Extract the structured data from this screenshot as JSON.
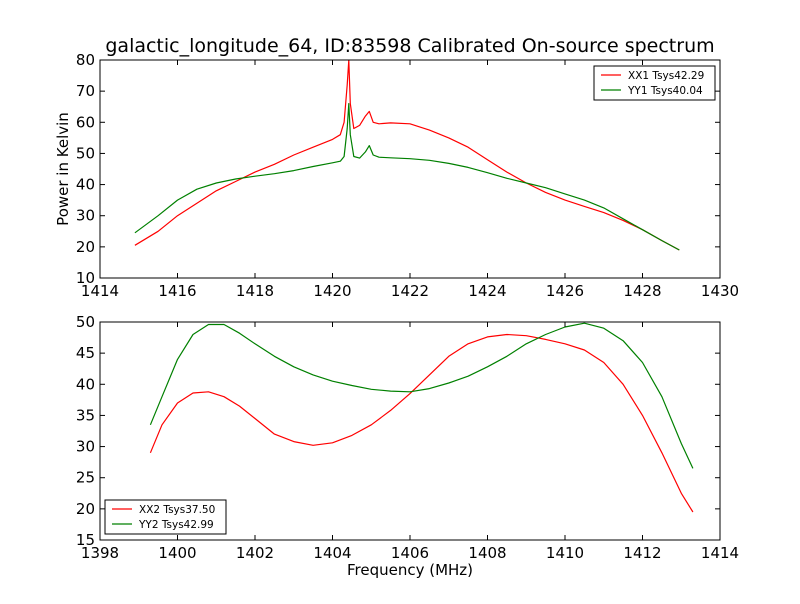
{
  "figure_title": "galactic_longitude_64, ID:83598 Calibrated On-source spectrum",
  "chart_data": [
    {
      "type": "line",
      "title": "galactic_longitude_64, ID:83598 Calibrated On-source spectrum",
      "xlabel": "",
      "ylabel": "Power in Kelvin",
      "xlim": [
        1414,
        1430
      ],
      "ylim": [
        10,
        80
      ],
      "xticks": [
        "1414",
        "1416",
        "1418",
        "1420",
        "1422",
        "1424",
        "1426",
        "1428",
        "1430"
      ],
      "yticks": [
        "10",
        "20",
        "30",
        "40",
        "50",
        "60",
        "70",
        "80"
      ],
      "legend_position": "top-right",
      "grid": false,
      "series": [
        {
          "name": "XX1 Tsys42.29",
          "color": "#ff0000",
          "x": [
            1414.9,
            1415.5,
            1416,
            1416.5,
            1417,
            1417.5,
            1418,
            1418.5,
            1419,
            1419.5,
            1420,
            1420.2,
            1420.3,
            1420.38,
            1420.42,
            1420.46,
            1420.55,
            1420.7,
            1420.85,
            1420.95,
            1421.05,
            1421.2,
            1421.5,
            1422,
            1422.5,
            1423,
            1423.5,
            1424,
            1424.5,
            1425,
            1425.5,
            1426,
            1426.5,
            1427,
            1427.5,
            1428,
            1428.5,
            1428.95
          ],
          "y": [
            20.5,
            25,
            30,
            34,
            38,
            41,
            44,
            46.5,
            49.5,
            52,
            54.5,
            56,
            60,
            72,
            80,
            66,
            58,
            59,
            62,
            63.5,
            60,
            59.5,
            59.8,
            59.5,
            57.5,
            55,
            52,
            48,
            44,
            40.5,
            37.5,
            35,
            33,
            31,
            28.5,
            25.5,
            22,
            19
          ]
        },
        {
          "name": "YY1 Tsys40.04",
          "color": "#008000",
          "x": [
            1414.9,
            1415.5,
            1416,
            1416.5,
            1417,
            1417.5,
            1418,
            1418.5,
            1419,
            1419.5,
            1420,
            1420.2,
            1420.3,
            1420.38,
            1420.42,
            1420.46,
            1420.55,
            1420.7,
            1420.85,
            1420.95,
            1421.05,
            1421.2,
            1421.5,
            1422,
            1422.5,
            1423,
            1423.5,
            1424,
            1424.5,
            1425,
            1425.5,
            1426,
            1426.5,
            1427,
            1427.5,
            1428,
            1428.5,
            1428.95
          ],
          "y": [
            24.5,
            30,
            35,
            38.5,
            40.5,
            41.8,
            42.7,
            43.5,
            44.5,
            45.8,
            47,
            47.5,
            49,
            58,
            66,
            56,
            49,
            48.5,
            50.5,
            52.5,
            49.5,
            48.8,
            48.6,
            48.3,
            47.8,
            46.8,
            45.5,
            43.8,
            42,
            40.5,
            39,
            37,
            35,
            32.5,
            29,
            25.5,
            22,
            19
          ]
        }
      ]
    },
    {
      "type": "line",
      "title": "",
      "xlabel": "Frequency (MHz)",
      "ylabel": "",
      "xlim": [
        1398,
        1414
      ],
      "ylim": [
        15,
        50
      ],
      "xticks": [
        "1398",
        "1400",
        "1402",
        "1404",
        "1406",
        "1408",
        "1410",
        "1412",
        "1414"
      ],
      "yticks": [
        "15",
        "20",
        "25",
        "30",
        "35",
        "40",
        "45",
        "50"
      ],
      "legend_position": "bottom-left",
      "grid": false,
      "series": [
        {
          "name": "XX2 Tsys37.50",
          "color": "#ff0000",
          "x": [
            1399.3,
            1399.6,
            1400,
            1400.4,
            1400.8,
            1401.2,
            1401.6,
            1402,
            1402.5,
            1403,
            1403.5,
            1404,
            1404.5,
            1405,
            1405.5,
            1406,
            1406.5,
            1407,
            1407.5,
            1408,
            1408.5,
            1409,
            1409.5,
            1410,
            1410.5,
            1411,
            1411.5,
            1412,
            1412.5,
            1413,
            1413.3
          ],
          "y": [
            29,
            33.5,
            37,
            38.6,
            38.8,
            38,
            36.5,
            34.5,
            32,
            30.8,
            30.2,
            30.6,
            31.8,
            33.5,
            35.8,
            38.5,
            41.5,
            44.5,
            46.5,
            47.6,
            48,
            47.8,
            47.2,
            46.5,
            45.5,
            43.5,
            40,
            35,
            29,
            22.5,
            19.5
          ]
        },
        {
          "name": "YY2 Tsys42.99",
          "color": "#008000",
          "x": [
            1399.3,
            1399.6,
            1400,
            1400.4,
            1400.8,
            1401.2,
            1401.6,
            1402,
            1402.5,
            1403,
            1403.5,
            1404,
            1404.5,
            1405,
            1405.5,
            1406,
            1406.5,
            1407,
            1407.5,
            1408,
            1408.5,
            1409,
            1409.5,
            1410,
            1410.5,
            1411,
            1411.5,
            1412,
            1412.5,
            1413,
            1413.3
          ],
          "y": [
            33.5,
            38,
            44,
            48,
            49.6,
            49.6,
            48.2,
            46.5,
            44.5,
            42.8,
            41.5,
            40.5,
            39.8,
            39.2,
            38.9,
            38.8,
            39.3,
            40.2,
            41.3,
            42.8,
            44.5,
            46.5,
            48,
            49.2,
            49.8,
            49,
            47,
            43.5,
            38,
            30.5,
            26.5
          ]
        }
      ]
    }
  ]
}
